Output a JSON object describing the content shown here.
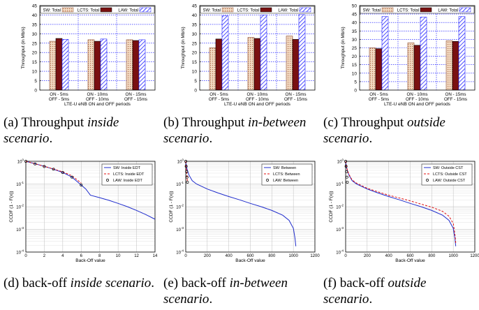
{
  "colors": {
    "sw_fill": "#f3dcc4",
    "sw_dot": "#b0694a",
    "lcts": "#7a1010",
    "law_fill": "#ffffff",
    "law_hatch": "#1f1fff",
    "sw_line": "#1f2ccc",
    "lcts_line": "#e01010",
    "grid": "#0000ff"
  },
  "captions": [
    {
      "label": "(a) Throughput ",
      "em": "inside",
      "tail": " scenario",
      "em2": "",
      "dot": "."
    },
    {
      "label": "(b) Throughput ",
      "em": "in-between",
      "tail": " scenario",
      "em2": "",
      "dot": "."
    },
    {
      "label": "(c) Throughput ",
      "em": "outside",
      "tail": " scenario",
      "em2": "",
      "dot": "."
    },
    {
      "label": "(d) back-off ",
      "em": "inside",
      "tail": " scenario",
      "em2": "",
      "dot": "."
    },
    {
      "label": "(e) back-off ",
      "em": "in-between",
      "tail": " scenario",
      "em2": "",
      "dot": "."
    },
    {
      "label": "(f) back-off ",
      "em": "outside",
      "tail": " scenario",
      "em2": "",
      "dot": "."
    }
  ],
  "chart_data": [
    {
      "type": "bar",
      "ylabel": "Throughput (in Mb/s)",
      "xlabel": "LTE-U eNB ON and OFF periods",
      "ylim": [
        0,
        45
      ],
      "yticks": [
        0,
        5,
        10,
        15,
        20,
        25,
        30,
        35,
        40,
        45
      ],
      "grid": true,
      "legend": "top",
      "categories": [
        [
          "ON - 5ms",
          "OFF - 5ms"
        ],
        [
          "ON - 10ms",
          "OFF - 10ms"
        ],
        [
          "ON - 15ms",
          "OFF - 15ms"
        ]
      ],
      "series": [
        {
          "name": "SW: Total",
          "values": [
            26.0,
            26.8,
            26.8
          ]
        },
        {
          "name": "LCTS: Total",
          "values": [
            27.5,
            26.0,
            26.4
          ]
        },
        {
          "name": "LAW: Total",
          "values": [
            27.0,
            27.2,
            26.8
          ]
        }
      ]
    },
    {
      "type": "bar",
      "ylabel": "Throughput (in Mb/s)",
      "xlabel": "LTE-U eNB ON and OFF periods",
      "ylim": [
        0,
        45
      ],
      "yticks": [
        0,
        5,
        10,
        15,
        20,
        25,
        30,
        35,
        40,
        45
      ],
      "grid": true,
      "legend": "top",
      "categories": [
        [
          "ON - 5ms",
          "OFF - 5ms"
        ],
        [
          "ON - 10ms",
          "OFF - 10ms"
        ],
        [
          "ON - 15ms",
          "OFF - 15ms"
        ]
      ],
      "series": [
        {
          "name": "SW: Total",
          "values": [
            22.5,
            28.0,
            28.8
          ]
        },
        {
          "name": "LCTS: Total",
          "values": [
            27.2,
            27.5,
            27.0
          ]
        },
        {
          "name": "LAW: Total",
          "values": [
            39.5,
            40.0,
            40.2
          ]
        }
      ]
    },
    {
      "type": "bar",
      "ylabel": "Throughput (in Mb/s)",
      "xlabel": "LTE-U eNB ON and OFF periods",
      "ylim": [
        0,
        50
      ],
      "yticks": [
        0,
        5,
        10,
        15,
        20,
        25,
        30,
        35,
        40,
        45,
        50
      ],
      "grid": true,
      "legend": "top",
      "categories": [
        [
          "ON - 5ms",
          "OFF - 5ms"
        ],
        [
          "ON - 10ms",
          "OFF - 10ms"
        ],
        [
          "ON - 15ms",
          "OFF - 15ms"
        ]
      ],
      "series": [
        {
          "name": "SW: Total",
          "values": [
            25.0,
            28.0,
            29.2
          ]
        },
        {
          "name": "LCTS: Total",
          "values": [
            24.5,
            26.5,
            28.8
          ]
        },
        {
          "name": "LAW: Total",
          "values": [
            43.5,
            43.2,
            43.5
          ]
        }
      ]
    },
    {
      "type": "line",
      "yscale": "log",
      "ylabel": "CCDF (1 - F(x))",
      "xlabel": "Back-Off value",
      "xlim": [
        0,
        14
      ],
      "xticks": [
        0,
        2,
        4,
        6,
        8,
        10,
        12,
        14
      ],
      "ylim": [
        0.0001,
        1
      ],
      "yticks": [
        "10^-4",
        "10^-3",
        "10^-2",
        "10^-1",
        "10^0"
      ],
      "grid": true,
      "legend": "top-right",
      "series": [
        {
          "name": "SW: Inside EDT",
          "style": "solid",
          "x": [
            0,
            1,
            2,
            3,
            4,
            5,
            6,
            6.5,
            7,
            8,
            9,
            10,
            11,
            12,
            13,
            14
          ],
          "y": [
            1.0,
            0.78,
            0.6,
            0.45,
            0.32,
            0.2,
            0.09,
            0.06,
            0.032,
            0.025,
            0.019,
            0.014,
            0.01,
            0.0068,
            0.0045,
            0.0028
          ]
        },
        {
          "name": "LCTS: Inside EDT",
          "style": "dashed",
          "x": [
            0,
            1,
            2,
            3,
            4,
            5,
            6
          ],
          "y": [
            1.0,
            0.78,
            0.6,
            0.46,
            0.34,
            0.23,
            0.11
          ]
        },
        {
          "name": "LAW: Inside EDT",
          "style": "markers",
          "x": [
            0,
            1,
            2,
            3,
            4,
            5,
            6
          ],
          "y": [
            1.0,
            0.77,
            0.59,
            0.45,
            0.32,
            0.2,
            0.09
          ]
        }
      ]
    },
    {
      "type": "line",
      "yscale": "log",
      "ylabel": "CCDF (1 - F(x))",
      "xlabel": "Back-Off value",
      "xlim": [
        0,
        1200
      ],
      "xticks": [
        0,
        200,
        400,
        600,
        800,
        1000,
        1200
      ],
      "ylim": [
        0.0001,
        1
      ],
      "yticks": [
        "10^-4",
        "10^-3",
        "10^-2",
        "10^-1",
        "10^0"
      ],
      "grid": true,
      "legend": "top-right",
      "series": [
        {
          "name": "SW: Between",
          "style": "solid",
          "x": [
            0,
            10,
            30,
            60,
            100,
            200,
            300,
            400,
            500,
            600,
            700,
            800,
            900,
            960,
            1000,
            1015,
            1023
          ],
          "y": [
            1.0,
            0.5,
            0.25,
            0.14,
            0.1,
            0.06,
            0.04,
            0.028,
            0.02,
            0.014,
            0.01,
            0.0068,
            0.0042,
            0.0025,
            0.0011,
            0.0004,
            0.00018
          ]
        },
        {
          "name": "LCTS: Between",
          "style": "dashed",
          "x": [
            0,
            4,
            8,
            12,
            16
          ],
          "y": [
            1.0,
            0.6,
            0.35,
            0.2,
            0.12
          ]
        },
        {
          "name": "LAW: Between",
          "style": "markers",
          "x": [
            0,
            4,
            8,
            12,
            16
          ],
          "y": [
            1.0,
            0.6,
            0.35,
            0.2,
            0.12
          ]
        }
      ]
    },
    {
      "type": "line",
      "yscale": "log",
      "ylabel": "CCDF (1 - F(x))",
      "xlabel": "Back-Off value",
      "xlim": [
        0,
        1200
      ],
      "xticks": [
        0,
        200,
        400,
        600,
        800,
        1000,
        1200
      ],
      "ylim": [
        0.0001,
        1
      ],
      "yticks": [
        "10^-4",
        "10^-3",
        "10^-2",
        "10^-1",
        "10^0"
      ],
      "grid": true,
      "legend": "top-right",
      "series": [
        {
          "name": "SW: Outside CST",
          "style": "solid",
          "x": [
            0,
            10,
            30,
            60,
            100,
            200,
            300,
            400,
            500,
            600,
            700,
            800,
            900,
            960,
            1000,
            1015,
            1023
          ],
          "y": [
            1.0,
            0.5,
            0.25,
            0.14,
            0.1,
            0.06,
            0.04,
            0.028,
            0.02,
            0.014,
            0.01,
            0.0068,
            0.0042,
            0.0025,
            0.0011,
            0.0004,
            0.00018
          ]
        },
        {
          "name": "LCTS: Outside CST",
          "style": "dashed",
          "x": [
            0,
            10,
            30,
            60,
            100,
            200,
            300,
            400,
            500,
            600,
            700,
            800,
            900,
            960,
            1000,
            1015,
            1023
          ],
          "y": [
            1.0,
            0.52,
            0.27,
            0.15,
            0.11,
            0.065,
            0.045,
            0.032,
            0.024,
            0.018,
            0.013,
            0.0095,
            0.0062,
            0.0038,
            0.0018,
            0.0006,
            0.00025
          ]
        },
        {
          "name": "LAW: Outside CST",
          "style": "markers",
          "x": [
            0,
            4,
            8,
            12,
            16
          ],
          "y": [
            1.0,
            0.6,
            0.35,
            0.2,
            0.12
          ]
        }
      ]
    }
  ]
}
